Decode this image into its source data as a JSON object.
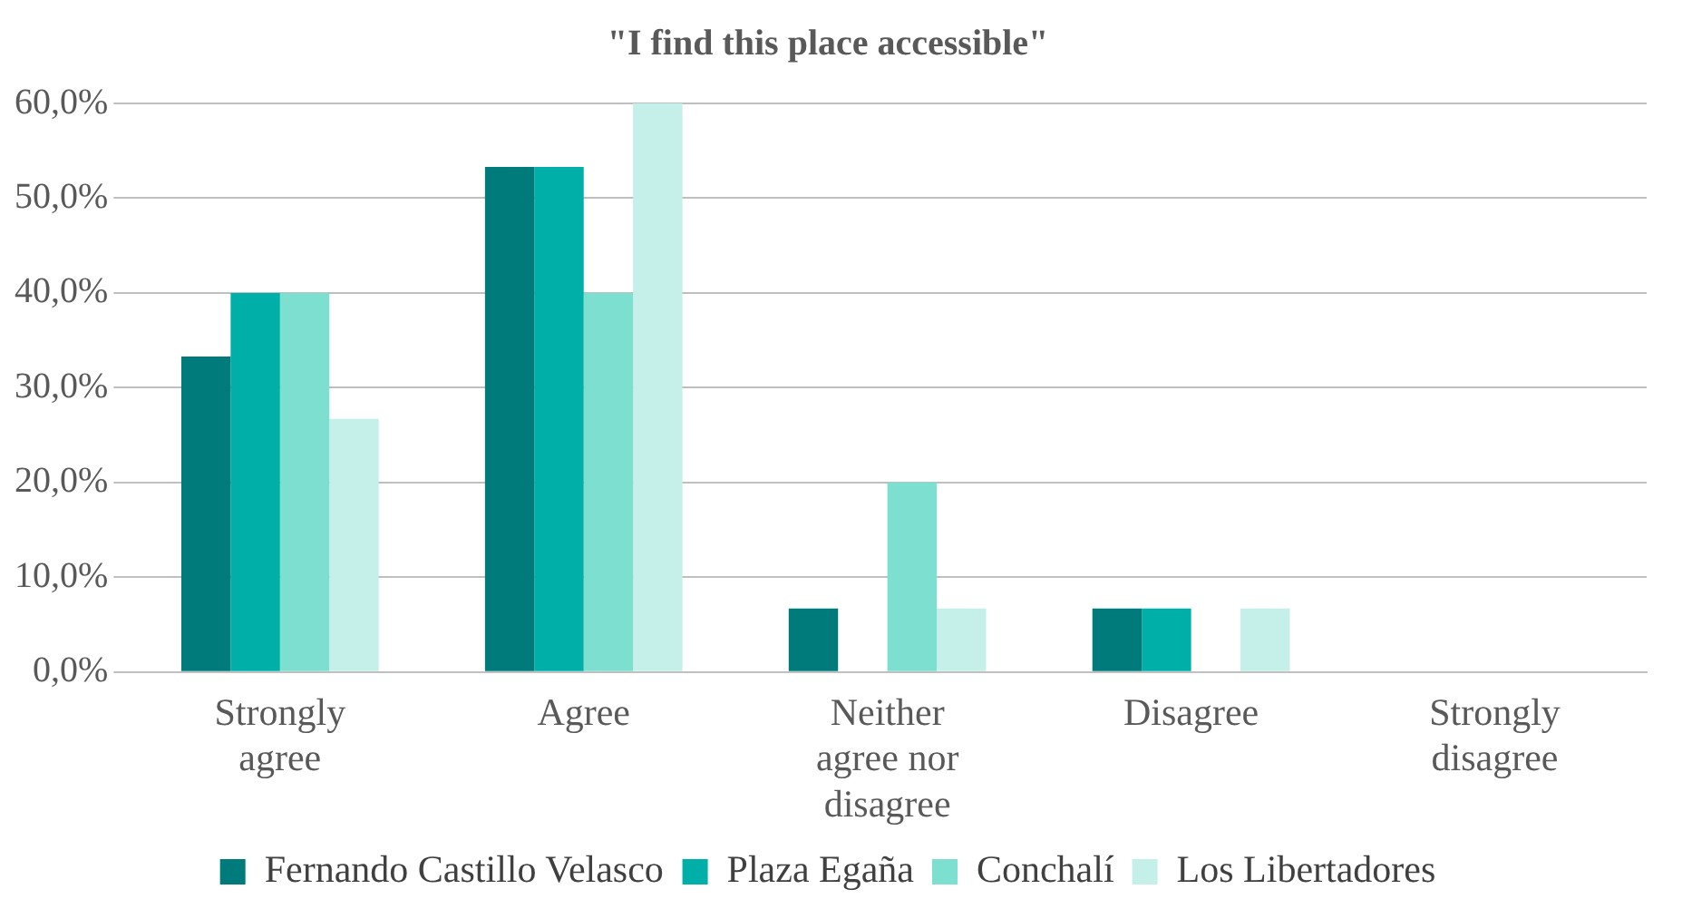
{
  "chart_data": {
    "type": "bar",
    "title": "\"I find this place accessible\"",
    "categories": [
      "Strongly agree",
      "Agree",
      "Neither agree nor disagree",
      "Disagree",
      "Strongly disagree"
    ],
    "series": [
      {
        "name": "Fernando Castillo Velasco",
        "color": "#007b7b",
        "values": [
          33.3,
          53.3,
          6.7,
          6.7,
          0
        ]
      },
      {
        "name": "Plaza Egaña",
        "color": "#00b0a8",
        "values": [
          40,
          53.3,
          0,
          6.7,
          0
        ]
      },
      {
        "name": "Conchalí",
        "color": "#7ddfd0",
        "values": [
          40,
          40,
          20,
          0,
          0
        ]
      },
      {
        "name": "Los Libertadores",
        "color": "#c5f0ea",
        "values": [
          26.7,
          60,
          6.7,
          6.7,
          0
        ]
      }
    ],
    "ylim": [
      0,
      60
    ],
    "yticks": [
      {
        "value": 0,
        "label": "0,0%"
      },
      {
        "value": 10,
        "label": "10,0%"
      },
      {
        "value": 20,
        "label": "20,0%"
      },
      {
        "value": 30,
        "label": "30,0%"
      },
      {
        "value": 40,
        "label": "40,0%"
      },
      {
        "value": 50,
        "label": "50,0%"
      },
      {
        "value": 60,
        "label": "60,0%"
      }
    ],
    "grid": "y",
    "legend": "bottom"
  }
}
